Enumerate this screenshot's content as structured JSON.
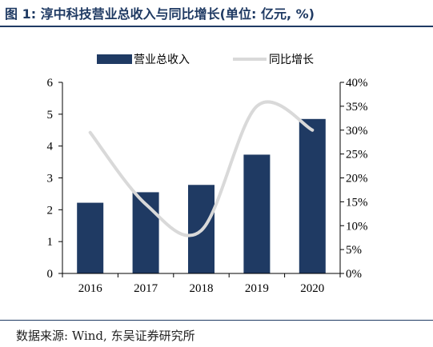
{
  "header": {
    "title": "图 1: 淳中科技营业总收入与同比增长(单位: 亿元, %)"
  },
  "footer": {
    "source": "数据来源: Wind, 东吴证券研究所"
  },
  "chart_data": {
    "type": "bar",
    "categories": [
      "2016",
      "2017",
      "2018",
      "2019",
      "2020"
    ],
    "series": [
      {
        "name": "营业总收入",
        "type": "bar",
        "axis": "left",
        "color": "#1f3a63",
        "values": [
          2.22,
          2.55,
          2.78,
          3.73,
          4.85
        ]
      },
      {
        "name": "同比增长",
        "type": "line",
        "axis": "right",
        "color": "#d9d9d9",
        "values": [
          29.5,
          14.5,
          9.0,
          35.0,
          30.0
        ]
      }
    ],
    "ylim": [
      0,
      6
    ],
    "yticks": [
      "0",
      "1",
      "2",
      "3",
      "4",
      "5",
      "6"
    ],
    "y2lim": [
      0,
      40
    ],
    "y2ticks": [
      "0%",
      "5%",
      "10%",
      "15%",
      "20%",
      "25%",
      "30%",
      "35%",
      "40%"
    ],
    "legend": "top",
    "grid": false
  }
}
